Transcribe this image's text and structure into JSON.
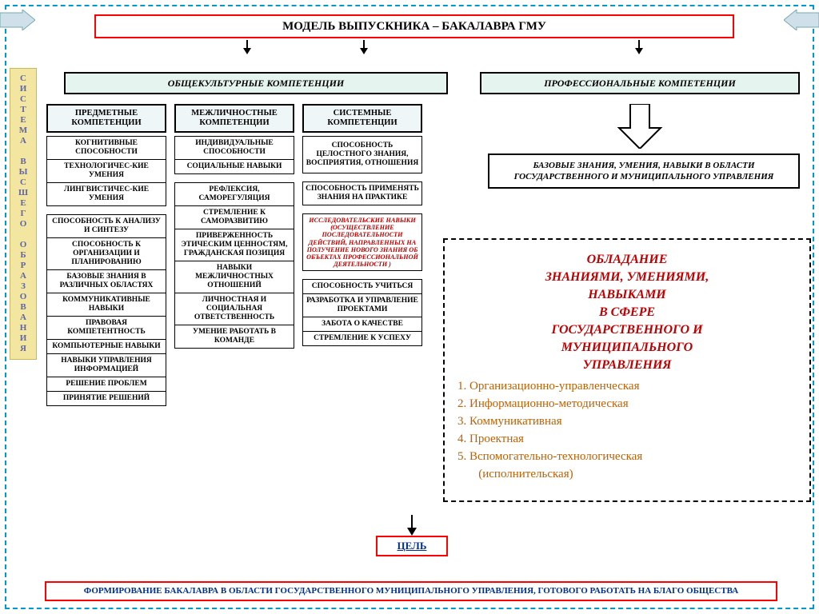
{
  "colors": {
    "frame_dash": "#0099cc",
    "red_border": "#ff0000",
    "header_bg": "#e6f4f0",
    "col_head_bg": "#eff6f8",
    "sidebar_bg": "#f3e6a0",
    "sidebar_text": "#5e65a8",
    "red_text": "#c00000",
    "orange_text": "#c06000",
    "navy_text": "#003090",
    "arrow_fill": "#cfe0ea"
  },
  "title": "МОДЕЛЬ ВЫПУСКНИКА – БАКАЛАВРА ГМУ",
  "sidebar": "С\nИ\nС\nТ\nЕ\nМ\nА\n \nВ\nЫ\nС\nШ\nЕ\nГ\nО\n \nО\nБ\nР\nА\nЗ\nО\nВ\nА\nН\nИ\nЯ",
  "section_left": "ОБЩЕКУЛЬТУРНЫЕ КОМПЕТЕНЦИИ",
  "section_right": "ПРОФЕССИОНАЛЬНЫЕ   КОМПЕТЕНЦИИ",
  "col1": {
    "head": "ПРЕДМЕТНЫЕ КОМПЕТЕНЦИИ",
    "items": [
      "КОГНИТИВНЫЕ СПОСОБНОСТИ",
      "ТЕХНОЛОГИЧЕС-КИЕ УМЕНИЯ",
      "ЛИНГВИСТИЧЕС-КИЕ УМЕНИЯ",
      "СПОСОБНОСТЬ К АНАЛИЗУ И СИНТЕЗУ",
      "СПОСОБНОСТЬ К ОРГАНИЗАЦИИ И ПЛАНИРОВАНИЮ",
      "БАЗОВЫЕ ЗНАНИЯ В РАЗЛИЧНЫХ ОБЛАСТЯХ",
      "КОММУНИКАТИВНЫЕ НАВЫКИ",
      "ПРАВОВАЯ КОМПЕТЕНТНОСТЬ",
      "КОМПЬЮТЕРНЫЕ НАВЫКИ",
      "НАВЫКИ УПРАВЛЕНИЯ ИНФОРМАЦИЕЙ",
      "РЕШЕНИЕ ПРОБЛЕМ",
      "ПРИНЯТИЕ РЕШЕНИЙ"
    ]
  },
  "col2": {
    "head": "МЕЖЛИЧНОСТНЫЕ КОМПЕТЕНЦИИ",
    "items": [
      "ИНДИВИДУАЛЬНЫЕ СПОСОБНОСТИ",
      "СОЦИАЛЬНЫЕ НАВЫКИ",
      "РЕФЛЕКСИЯ, САМОРЕГУЛЯЦИЯ",
      "СТРЕМЛЕНИЕ К САМОРАЗВИТИЮ",
      "ПРИВЕРЖЕННОСТЬ ЭТИЧЕСКИМ ЦЕННОСТЯМ, ГРАЖДАНСКАЯ ПОЗИЦИЯ",
      "НАВЫКИ МЕЖЛИЧНОСТНЫХ ОТНОШЕНИЙ",
      "ЛИЧНОСТНАЯ И СОЦИАЛЬНАЯ ОТВЕТСТВЕННОСТЬ",
      "УМЕНИЕ РАБОТАТЬ В КОМАНДЕ"
    ]
  },
  "col3": {
    "head": "СИСТЕМНЫЕ КОМПЕТЕНЦИИ",
    "items_a": [
      "СПОСОБНОСТЬ ЦЕЛОСТНОГО ЗНАНИЯ, ВОСПРИЯТИЯ, ОТНОШЕНИЯ",
      "СПОСОБНОСТЬ ПРИМЕНЯТЬ ЗНАНИЯ НА ПРАКТИКЕ"
    ],
    "red": "ИССЛЕДОВАТЕЛЬСКИЕ НАВЫКИ (ОСУЩЕСТВЛЕНИЕ ПОСЛЕДОВАТЕЛЬНОСТИ ДЕЙСТВИЙ, НАПРАВЛЕННЫХ НА ПОЛУЧЕНИЕ НОВОГО ЗНАНИЯ ОБ ОБЪЕКТАХ ПРОФЕССИОНАЛЬНОЙ ДЕЯТЕЛЬНОСТИ )",
    "items_b": [
      "СПОСОБНОСТЬ УЧИТЬСЯ",
      "РАЗРАБОТКА И УПРАВЛЕНИЕ ПРОЕКТАМИ",
      "ЗАБОТА О КАЧЕСТВЕ",
      "СТРЕМЛЕНИЕ К УСПЕХУ"
    ]
  },
  "base_know": "БАЗОВЫЕ ЗНАНИЯ, УМЕНИЯ, НАВЫКИ В ОБЛАСТИ ГОСУДАРСТВЕННОГО И МУНИЦИПАЛЬНОГО УПРАВЛЕНИЯ",
  "right_panel": {
    "hdr": "ОБЛАДАНИЕ\nЗНАНИЯМИ, УМЕНИЯМИ,\nНАВЫКАМИ\nВ СФЕРЕ\nГОСУДАРСТВЕННОГО И\nМУНИЦИПАЛЬНОГО\nУПРАВЛЕНИЯ",
    "list": [
      "1. Организационно-управленческая",
      "2. Информационно-методическая",
      "3. Коммуникативная",
      "4. Проектная",
      "5. Вспомогательно-технологическая",
      "       (исполнительская)"
    ]
  },
  "goal": "ЦЕЛЬ",
  "footer": "ФОРМИРОВАНИЕ БАКАЛАВРА  В ОБЛАСТИ ГОСУДАРСТВЕННОГО МУНИЦИПАЛЬНОГО УПРАВЛЕНИЯ, ГОТОВОГО РАБОТАТЬ  НА БЛАГО ОБЩЕСТВА"
}
